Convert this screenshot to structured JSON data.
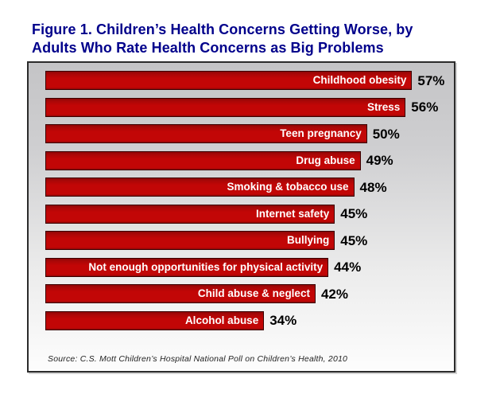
{
  "figure": {
    "title_line1": "Figure 1. Children’s Health Concerns Getting Worse, by",
    "title_line2": "Adults Who Rate Health Concerns as Big Problems",
    "source": "Source: C.S. Mott Children’s Hospital National Poll on Children’s Health, 2010"
  },
  "colors": {
    "title_text": "#00008B",
    "bar_fill": "#C20606",
    "bar_label_text": "#FFFFFF",
    "value_text": "#000000",
    "plot_border": "#2B2B2B",
    "plot_bg_top": "#C4C4C6",
    "plot_bg_bottom": "#FDFDFD",
    "source_text": "#222222"
  },
  "chart_data": {
    "type": "bar",
    "orientation": "horizontal",
    "title": "Figure 1. Children’s Health Concerns Getting Worse, by Adults Who Rate Health Concerns as Big Problems",
    "categories": [
      "Childhood obesity",
      "Stress",
      "Teen pregnancy",
      "Drug abuse",
      "Smoking & tobacco use",
      "Internet safety",
      "Bullying",
      "Not enough opportunities for physical activity",
      "Child abuse & neglect",
      "Alcohol abuse"
    ],
    "values": [
      57,
      56,
      50,
      49,
      48,
      45,
      45,
      44,
      42,
      34
    ],
    "value_suffix": "%",
    "xlabel": "",
    "ylabel": "",
    "xlim": [
      0,
      63.5
    ],
    "grid": false,
    "legend": "none",
    "bar_labels_position": "inside-end",
    "value_labels_position": "outside-end",
    "source": "Source: C.S. Mott Children’s Hospital National Poll on Children’s Health, 2010"
  }
}
